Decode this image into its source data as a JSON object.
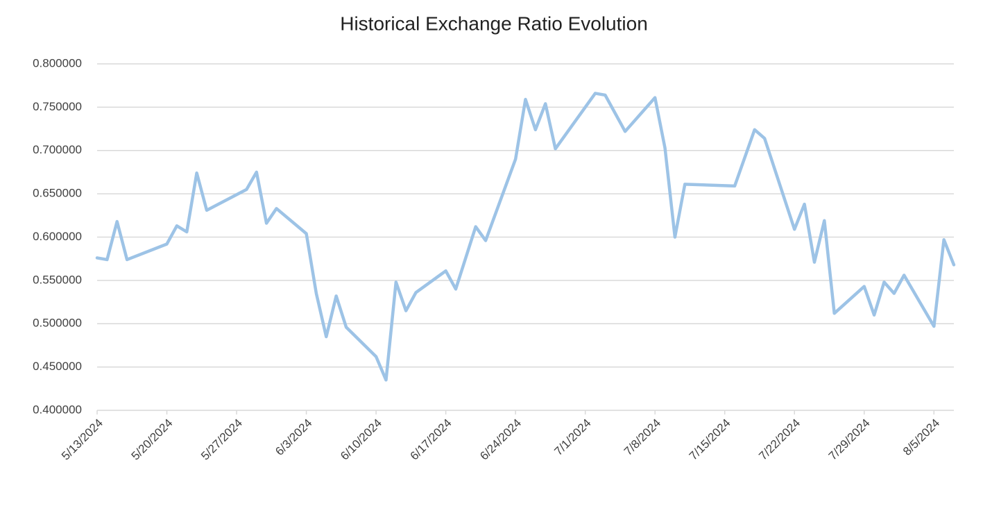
{
  "chart_data": {
    "type": "line",
    "title": "Historical Exchange Ratio Evolution",
    "x": [
      "5/13/2024",
      "5/14/2024",
      "5/15/2024",
      "5/16/2024",
      "5/20/2024",
      "5/21/2024",
      "5/22/2024",
      "5/23/2024",
      "5/24/2024",
      "5/28/2024",
      "5/29/2024",
      "5/30/2024",
      "5/31/2024",
      "6/3/2024",
      "6/4/2024",
      "6/5/2024",
      "6/6/2024",
      "6/7/2024",
      "6/10/2024",
      "6/11/2024",
      "6/12/2024",
      "6/13/2024",
      "6/14/2024",
      "6/17/2024",
      "6/18/2024",
      "6/20/2024",
      "6/21/2024",
      "6/24/2024",
      "6/25/2024",
      "6/26/2024",
      "6/27/2024",
      "6/28/2024",
      "7/2/2024",
      "7/3/2024",
      "7/5/2024",
      "7/8/2024",
      "7/9/2024",
      "7/10/2024",
      "7/11/2024",
      "7/16/2024",
      "7/18/2024",
      "7/19/2024",
      "7/22/2024",
      "7/23/2024",
      "7/24/2024",
      "7/25/2024",
      "7/26/2024",
      "7/29/2024",
      "7/30/2024",
      "7/31/2024",
      "8/1/2024",
      "8/2/2024",
      "8/5/2024",
      "8/6/2024",
      "8/7/2024"
    ],
    "series": [
      {
        "name": "Exchange Ratio",
        "color": "#9dc3e6",
        "values": [
          0.576,
          0.574,
          0.618,
          0.574,
          0.592,
          0.613,
          0.606,
          0.674,
          0.631,
          0.655,
          0.675,
          0.616,
          0.633,
          0.604,
          0.535,
          0.485,
          0.532,
          0.496,
          0.462,
          0.435,
          0.548,
          0.515,
          0.536,
          0.561,
          0.54,
          0.612,
          0.596,
          0.69,
          0.759,
          0.724,
          0.754,
          0.702,
          0.766,
          0.764,
          0.722,
          0.761,
          0.703,
          0.6,
          0.661,
          0.659,
          0.724,
          0.714,
          0.609,
          0.638,
          0.571,
          0.619,
          0.512,
          0.543,
          0.51,
          0.548,
          0.535,
          0.556,
          0.497,
          0.597,
          0.568
        ]
      }
    ],
    "xlim": [
      "5/13/2024",
      "8/7/2024"
    ],
    "xticks": [
      "5/13/2024",
      "5/20/2024",
      "5/27/2024",
      "6/3/2024",
      "6/10/2024",
      "6/17/2024",
      "6/24/2024",
      "7/1/2024",
      "7/8/2024",
      "7/15/2024",
      "7/22/2024",
      "7/29/2024",
      "8/5/2024"
    ],
    "ylim": [
      0.4,
      0.8
    ],
    "yticks": [
      {
        "value": 0.4,
        "label": "0.400000"
      },
      {
        "value": 0.45,
        "label": "0.450000"
      },
      {
        "value": 0.5,
        "label": "0.500000"
      },
      {
        "value": 0.55,
        "label": "0.550000"
      },
      {
        "value": 0.6,
        "label": "0.600000"
      },
      {
        "value": 0.65,
        "label": "0.650000"
      },
      {
        "value": 0.7,
        "label": "0.700000"
      },
      {
        "value": 0.75,
        "label": "0.750000"
      },
      {
        "value": 0.8,
        "label": "0.800000"
      }
    ],
    "grid": true
  }
}
